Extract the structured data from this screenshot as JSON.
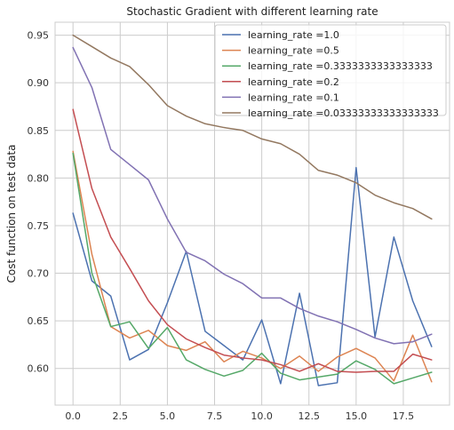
{
  "chart_data": {
    "type": "line",
    "title": "Stochastic Gradient with different learning rate",
    "xlabel": "",
    "ylabel": "Cost function on test data",
    "xlim": [
      -0.95,
      19.95
    ],
    "ylim": [
      0.5615,
      0.9636
    ],
    "xticks": [
      0.0,
      2.5,
      5.0,
      7.5,
      10.0,
      12.5,
      15.0,
      17.5
    ],
    "xtick_labels": [
      "0.0",
      "2.5",
      "5.0",
      "7.5",
      "10.0",
      "12.5",
      "15.0",
      "17.5"
    ],
    "yticks": [
      0.6,
      0.65,
      0.7,
      0.75,
      0.8,
      0.85,
      0.9,
      0.95
    ],
    "ytick_labels": [
      "0.60",
      "0.65",
      "0.70",
      "0.75",
      "0.80",
      "0.85",
      "0.90",
      "0.95"
    ],
    "grid": true,
    "legend_position": "top-right",
    "x": [
      0,
      1,
      2,
      3,
      4,
      5,
      6,
      7,
      8,
      9,
      10,
      11,
      12,
      13,
      14,
      15,
      16,
      17,
      18,
      19
    ],
    "series": [
      {
        "name": "learning_rate =1.0",
        "color": "#4c72b0",
        "values": [
          0.763,
          0.692,
          0.676,
          0.609,
          0.62,
          0.669,
          0.723,
          0.639,
          0.624,
          0.609,
          0.651,
          0.584,
          0.679,
          0.582,
          0.585,
          0.811,
          0.633,
          0.738,
          0.671,
          0.623
        ]
      },
      {
        "name": "learning_rate =0.5",
        "color": "#dd8452",
        "values": [
          0.828,
          0.72,
          0.644,
          0.632,
          0.64,
          0.624,
          0.619,
          0.628,
          0.607,
          0.618,
          0.611,
          0.6,
          0.613,
          0.597,
          0.612,
          0.621,
          0.611,
          0.587,
          0.635,
          0.586
        ]
      },
      {
        "name": "learning_rate =0.3333333333333333",
        "color": "#55a868",
        "values": [
          0.826,
          0.7,
          0.644,
          0.649,
          0.621,
          0.643,
          0.609,
          0.599,
          0.592,
          0.598,
          0.616,
          0.595,
          0.588,
          0.591,
          0.594,
          0.608,
          0.599,
          0.584,
          0.59,
          0.596
        ]
      },
      {
        "name": "learning_rate =0.2",
        "color": "#c44e52",
        "values": [
          0.872,
          0.789,
          0.738,
          0.705,
          0.671,
          0.646,
          0.631,
          0.622,
          0.614,
          0.611,
          0.609,
          0.604,
          0.597,
          0.605,
          0.597,
          0.596,
          0.597,
          0.597,
          0.615,
          0.609
        ]
      },
      {
        "name": "learning_rate =0.1",
        "color": "#8172b3",
        "values": [
          0.937,
          0.895,
          0.83,
          0.814,
          0.798,
          0.757,
          0.722,
          0.713,
          0.699,
          0.689,
          0.674,
          0.674,
          0.663,
          0.655,
          0.649,
          0.641,
          0.632,
          0.626,
          0.628,
          0.636
        ]
      },
      {
        "name": "learning_rate =0.03333333333333333",
        "color": "#937860",
        "values": [
          0.95,
          0.938,
          0.926,
          0.917,
          0.898,
          0.876,
          0.865,
          0.857,
          0.853,
          0.85,
          0.841,
          0.836,
          0.825,
          0.808,
          0.803,
          0.795,
          0.782,
          0.774,
          0.768,
          0.757
        ]
      }
    ]
  }
}
